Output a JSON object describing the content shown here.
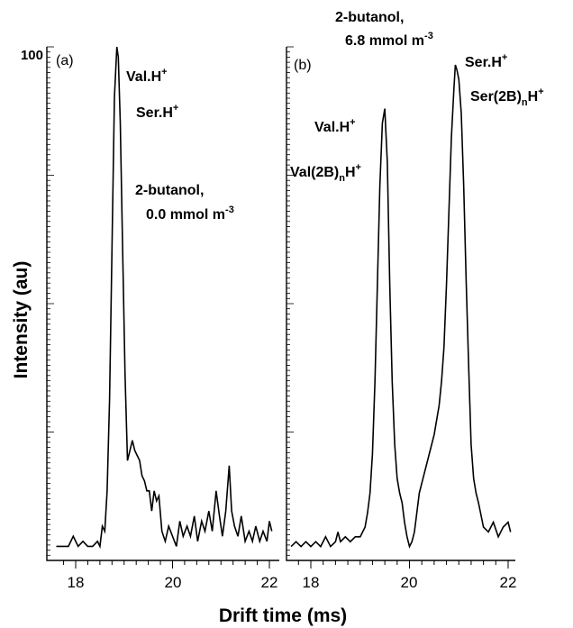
{
  "chart_data": {
    "type": "line",
    "ylabel": "Intensity (au)",
    "xlabel": "Drift time (ms)",
    "y_top_label": "100",
    "panels": [
      {
        "panel_label": "(a)",
        "xlim": [
          17.6,
          22.1
        ],
        "ylim": [
          0,
          100
        ],
        "x_ticks": [
          "18",
          "20",
          "22"
        ],
        "annotations": {
          "peak1": "Val.H",
          "peak1_sup": "+",
          "peak2": "Ser.H",
          "peak2_sup": "+",
          "condition_line1": "2-butanol,",
          "condition_line2": "0.0 mmol m",
          "condition_sup": "-3"
        },
        "series": [
          {
            "x": [
              17.6,
              17.75,
              17.85,
              17.95,
              18.05,
              18.15,
              18.25,
              18.35,
              18.45,
              18.5,
              18.55,
              18.6,
              18.65,
              18.7,
              18.75,
              18.8,
              18.85,
              18.88,
              18.92,
              18.97,
              19.02,
              19.07,
              19.12,
              19.17,
              19.22,
              19.27,
              19.32,
              19.37,
              19.42,
              19.47,
              19.52,
              19.57,
              19.62,
              19.67,
              19.72,
              19.78,
              19.85,
              19.92,
              20.0,
              20.08,
              20.15,
              20.22,
              20.3,
              20.37,
              20.45,
              20.52,
              20.6,
              20.67,
              20.75,
              20.82,
              20.9,
              20.97,
              21.03,
              21.1,
              21.17,
              21.22,
              21.28,
              21.35,
              21.42,
              21.5,
              21.58,
              21.65,
              21.72,
              21.8,
              21.87,
              21.95,
              22.0,
              22.05
            ],
            "y": [
              1,
              1,
              1,
              3,
              1,
              2,
              1,
              1,
              2,
              1,
              5,
              4,
              12,
              30,
              60,
              90,
              100,
              98,
              85,
              60,
              35,
              18,
              20,
              22,
              20,
              19,
              18,
              15,
              14,
              12,
              12,
              8,
              12,
              10,
              11,
              4,
              2,
              5,
              3,
              1,
              6,
              3,
              5,
              3,
              7,
              2,
              6,
              4,
              8,
              4,
              12,
              7,
              3,
              8,
              17,
              8,
              5,
              3,
              7,
              2,
              4,
              2,
              5,
              2,
              4,
              2,
              6,
              4
            ]
          }
        ]
      },
      {
        "panel_label": "(b)",
        "xlim": [
          17.6,
          22.1
        ],
        "ylim": [
          0,
          100
        ],
        "x_ticks": [
          "18",
          "20",
          "22"
        ],
        "annotations": {
          "condition_line1": "2-butanol,",
          "condition_line2": "6.8 mmol m",
          "condition_sup": "-3",
          "peak1": "Val.H",
          "peak1_sup": "+",
          "peak1b": "Val(2B)",
          "peak1b_sub": "n",
          "peak1b_tail": "H",
          "peak1b_sup": "+",
          "peak2": "Ser.H",
          "peak2_sup": "+",
          "peak2b": "Ser(2B)",
          "peak2b_sub": "n",
          "peak2b_tail": "H",
          "peak2b_sup": "+"
        },
        "series": [
          {
            "x": [
              17.6,
              17.7,
              17.8,
              17.9,
              18.0,
              18.1,
              18.2,
              18.3,
              18.4,
              18.5,
              18.55,
              18.6,
              18.7,
              18.8,
              18.9,
              19.0,
              19.1,
              19.15,
              19.2,
              19.25,
              19.3,
              19.35,
              19.4,
              19.45,
              19.5,
              19.55,
              19.6,
              19.65,
              19.7,
              19.75,
              19.8,
              19.85,
              19.9,
              19.95,
              20.0,
              20.05,
              20.1,
              20.15,
              20.2,
              20.3,
              20.4,
              20.5,
              20.6,
              20.65,
              20.7,
              20.75,
              20.8,
              20.85,
              20.9,
              20.93,
              20.96,
              21.0,
              21.05,
              21.1,
              21.15,
              21.2,
              21.25,
              21.3,
              21.35,
              21.4,
              21.5,
              21.6,
              21.7,
              21.8,
              21.9,
              22.0,
              22.05
            ],
            "y": [
              1,
              2,
              1,
              2,
              1,
              2,
              1,
              3,
              1,
              2,
              4,
              2,
              3,
              2,
              3,
              3,
              5,
              8,
              12,
              20,
              35,
              55,
              75,
              88,
              91,
              80,
              55,
              35,
              22,
              15,
              12,
              10,
              6,
              3,
              1,
              2,
              4,
              8,
              12,
              16,
              20,
              24,
              30,
              35,
              42,
              55,
              70,
              85,
              95,
              100,
              99,
              97,
              90,
              75,
              55,
              38,
              22,
              15,
              12,
              10,
              5,
              4,
              6,
              3,
              5,
              6,
              4
            ]
          }
        ]
      }
    ]
  }
}
